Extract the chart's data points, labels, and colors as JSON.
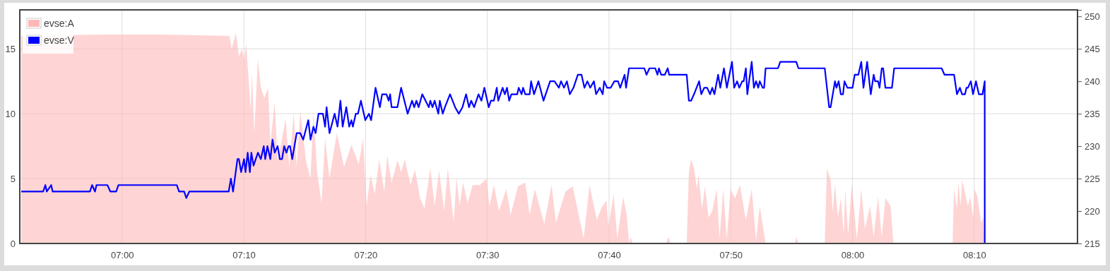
{
  "chart_data": {
    "type": "line",
    "xlim": [
      6.86,
      8.308
    ],
    "xticks": [
      {
        "value": 7,
        "label": "07:00"
      },
      {
        "value": 7.1666667,
        "label": "07:10"
      },
      {
        "value": 7.3333333,
        "label": "07:20"
      },
      {
        "value": 7.5,
        "label": "07:30"
      },
      {
        "value": 7.6666667,
        "label": "07:40"
      },
      {
        "value": 7.8333333,
        "label": "07:50"
      },
      {
        "value": 8,
        "label": "08:00"
      },
      {
        "value": 8.1666667,
        "label": "08:10"
      }
    ],
    "ylim": [
      0,
      18
    ],
    "yticks": [
      0,
      5,
      10,
      15
    ],
    "y2lim": [
      215,
      251
    ],
    "y2ticks": [
      215,
      220,
      225,
      230,
      235,
      240,
      245,
      250
    ],
    "grid": true,
    "legend": "top left",
    "series": [
      {
        "name": "evse:A",
        "type": "area",
        "color": "#ffb8b8",
        "x": [
          6.862,
          6.974,
          7.052,
          7.141,
          7.147,
          7.15,
          7.156,
          7.16,
          7.164,
          7.167,
          7.17,
          7.176,
          7.178,
          7.181,
          7.186,
          7.19,
          7.195,
          7.2,
          7.203,
          7.209,
          7.213,
          7.219,
          7.224,
          7.229,
          7.235,
          7.239,
          7.244,
          7.252,
          7.258,
          7.262,
          7.267,
          7.273,
          7.278,
          7.284,
          7.294,
          7.304,
          7.314,
          7.324,
          7.33,
          7.335,
          7.34,
          7.346,
          7.352,
          7.359,
          7.363,
          7.369,
          7.377,
          7.382,
          7.387,
          7.395,
          7.401,
          7.408,
          7.414,
          7.422,
          7.428,
          7.434,
          7.441,
          7.446,
          7.454,
          7.458,
          7.462,
          7.467,
          7.473,
          7.48,
          7.49,
          7.499,
          7.503,
          7.509,
          7.516,
          7.526,
          7.532,
          7.542,
          7.552,
          7.558,
          7.565,
          7.578,
          7.588,
          7.594,
          7.607,
          7.617,
          7.624,
          7.632,
          7.64,
          7.65,
          7.656,
          7.663,
          7.666,
          7.673,
          7.678,
          7.686,
          7.691,
          7.694,
          7.696,
          7.699,
          7.745,
          7.748,
          7.751,
          7.773,
          7.776,
          7.779,
          7.783,
          7.787,
          7.789,
          7.794,
          7.798,
          7.803,
          7.808,
          7.814,
          7.818,
          7.823,
          7.828,
          7.833,
          7.839,
          7.846,
          7.854,
          7.862,
          7.868,
          7.873,
          7.881,
          7.921,
          7.923,
          7.926,
          7.962,
          7.965,
          7.97,
          7.973,
          7.976,
          7.98,
          7.984,
          7.988,
          7.99,
          7.994,
          7.999,
          8.006,
          8.012,
          8.017,
          8.024,
          8.029,
          8.035,
          8.04,
          8.045,
          8.052,
          8.056,
          8.137,
          8.139,
          8.143,
          8.145,
          8.148,
          8.15,
          8.158,
          8.161,
          8.165,
          8.167,
          8.171,
          8.176,
          8.179,
          8.181
        ],
        "values": [
          16.0,
          16.1,
          16.1,
          16.0,
          16.0,
          15.0,
          16.2,
          14.4,
          15.0,
          14.2,
          15.4,
          10.3,
          13.1,
          8.5,
          14.2,
          12.0,
          11.2,
          12.0,
          7.7,
          10.9,
          6.3,
          8.1,
          9.6,
          5.9,
          10.1,
          5.9,
          10.2,
          6.3,
          5.0,
          10.1,
          5.5,
          3.1,
          8.1,
          5.0,
          8.5,
          5.9,
          7.6,
          6.1,
          8.1,
          2.9,
          5.3,
          3.8,
          6.5,
          4.0,
          6.8,
          4.7,
          6.4,
          5.5,
          6.5,
          4.5,
          5.7,
          3.5,
          2.7,
          5.8,
          2.9,
          5.6,
          2.5,
          5.8,
          1.6,
          5.1,
          2.9,
          4.7,
          3.1,
          4.5,
          4.5,
          5.0,
          2.9,
          4.5,
          2.5,
          4.2,
          2.2,
          4.4,
          4.7,
          2.2,
          4.2,
          1.5,
          4.5,
          1.6,
          4.0,
          4.4,
          2.5,
          0.4,
          4.5,
          1.8,
          2.7,
          3.3,
          1.3,
          3.8,
          0.4,
          3.6,
          2.2,
          0,
          0.5,
          0,
          0,
          0.5,
          0,
          0,
          5.5,
          6.5,
          5.8,
          4.2,
          5.3,
          2.7,
          4.4,
          2.0,
          2.5,
          4.2,
          0.4,
          4.2,
          0.4,
          4.2,
          3.5,
          4.5,
          1.8,
          4.2,
          0.3,
          2.9,
          0,
          0,
          0.5,
          0,
          0,
          5.8,
          4.9,
          2.4,
          4.6,
          2.0,
          3.5,
          0.7,
          4.2,
          0.7,
          4.6,
          0.3,
          4.2,
          1.1,
          2.9,
          0.5,
          3.6,
          0.5,
          3.5,
          2.9,
          0,
          0,
          4.2,
          2.7,
          4.7,
          2.9,
          4.9,
          2.9,
          3.6,
          2.0,
          4.2,
          3.6,
          1.6,
          2.0,
          0
        ]
      },
      {
        "name": "evse:V",
        "type": "line",
        "axis": "y2",
        "color": "#0000ff",
        "x": [
          6.862,
          6.892,
          6.895,
          6.897,
          6.903,
          6.905,
          6.956,
          6.959,
          6.963,
          6.965,
          6.98,
          6.984,
          6.992,
          6.995,
          7.075,
          7.078,
          7.085,
          7.088,
          7.092,
          7.146,
          7.149,
          7.152,
          7.158,
          7.16,
          7.163,
          7.167,
          7.169,
          7.172,
          7.175,
          7.177,
          7.18,
          7.186,
          7.19,
          7.194,
          7.196,
          7.199,
          7.203,
          7.206,
          7.209,
          7.213,
          7.216,
          7.219,
          7.222,
          7.225,
          7.228,
          7.23,
          7.233,
          7.239,
          7.244,
          7.248,
          7.255,
          7.258,
          7.262,
          7.265,
          7.269,
          7.275,
          7.278,
          7.28,
          7.284,
          7.291,
          7.295,
          7.299,
          7.302,
          7.307,
          7.311,
          7.314,
          7.316,
          7.32,
          7.323,
          7.327,
          7.333,
          7.338,
          7.341,
          7.347,
          7.353,
          7.356,
          7.362,
          7.365,
          7.367,
          7.369,
          7.377,
          7.382,
          7.391,
          7.397,
          7.4,
          7.403,
          7.406,
          7.411,
          7.42,
          7.422,
          7.425,
          7.428,
          7.433,
          7.435,
          7.439,
          7.442,
          7.449,
          7.456,
          7.461,
          7.466,
          7.471,
          7.475,
          7.478,
          7.482,
          7.488,
          7.492,
          7.496,
          7.502,
          7.505,
          7.509,
          7.513,
          7.515,
          7.521,
          7.524,
          7.527,
          7.53,
          7.533,
          7.541,
          7.543,
          7.547,
          7.549,
          7.552,
          7.558,
          7.56,
          7.564,
          7.57,
          7.577,
          7.586,
          7.592,
          7.598,
          7.601,
          7.605,
          7.609,
          7.613,
          7.618,
          7.624,
          7.629,
          7.633,
          7.637,
          7.641,
          7.646,
          7.649,
          7.654,
          7.658,
          7.66,
          7.664,
          7.669,
          7.674,
          7.679,
          7.682,
          7.688,
          7.69,
          7.694,
          7.715,
          7.718,
          7.722,
          7.73,
          7.733,
          7.735,
          7.738,
          7.743,
          7.747,
          7.749,
          7.773,
          7.776,
          7.779,
          7.783,
          7.79,
          7.793,
          7.797,
          7.801,
          7.805,
          7.808,
          7.811,
          7.816,
          7.819,
          7.824,
          7.828,
          7.835,
          7.838,
          7.842,
          7.845,
          7.849,
          7.851,
          7.854,
          7.856,
          7.862,
          7.865,
          7.868,
          7.871,
          7.873,
          7.877,
          7.879,
          7.881,
          7.898,
          7.901,
          7.923,
          7.926,
          7.962,
          7.968,
          7.97,
          7.976,
          7.978,
          7.981,
          7.984,
          7.987,
          7.989,
          7.993,
          8.0,
          8.003,
          8.008,
          8.012,
          8.015,
          8.02,
          8.025,
          8.029,
          8.031,
          8.035,
          8.037,
          8.04,
          8.042,
          8.045,
          8.054,
          8.057,
          8.122,
          8.126,
          8.139,
          8.143,
          8.147,
          8.15,
          8.154,
          8.156,
          8.158,
          8.162,
          8.165,
          8.169,
          8.173,
          8.178,
          8.181,
          8.181
        ],
        "values": [
          223,
          223,
          224,
          223,
          224,
          223,
          223,
          224,
          223,
          224,
          224,
          223,
          223,
          224,
          224,
          223,
          223,
          222,
          223,
          223,
          225,
          223,
          228,
          228,
          226,
          228,
          226,
          229,
          226,
          229,
          227,
          229,
          228,
          230,
          228,
          230,
          228,
          231,
          229,
          230,
          228,
          228,
          230,
          229,
          230,
          230,
          228,
          232,
          232,
          231,
          234,
          231,
          233,
          232,
          235,
          235,
          233,
          236,
          232,
          235,
          233,
          237,
          233,
          236,
          233,
          234,
          233,
          235,
          235,
          237,
          234,
          235,
          234,
          239,
          236,
          238,
          238,
          237,
          238,
          236,
          236,
          239,
          235,
          237,
          236,
          237,
          236,
          238,
          236,
          237,
          236,
          237,
          235,
          237,
          235,
          236,
          238,
          236,
          235,
          236,
          238,
          236,
          237,
          236,
          238,
          237,
          239,
          236,
          237,
          237,
          239,
          237,
          239,
          238,
          239,
          237,
          238,
          238,
          239,
          238,
          239,
          238,
          238,
          240,
          238,
          240,
          237,
          240,
          240,
          239,
          240,
          239,
          240,
          238,
          239,
          241,
          241,
          239,
          240,
          239,
          240,
          238,
          239,
          238,
          240,
          239,
          239,
          240,
          240,
          239,
          241,
          239,
          242,
          242,
          241,
          242,
          242,
          241,
          242,
          241,
          241,
          242,
          241,
          241,
          237,
          237,
          238,
          240,
          238,
          239,
          239,
          238,
          239,
          238,
          241,
          239,
          242,
          239,
          243,
          239,
          240,
          239,
          240,
          240,
          242,
          238,
          243,
          239,
          240,
          239,
          240,
          239,
          239,
          242,
          242,
          243,
          243,
          242,
          242,
          236,
          236,
          240,
          239,
          240,
          238,
          238,
          240,
          239,
          239,
          241,
          241,
          243,
          239,
          243,
          238,
          241,
          240,
          240,
          239,
          242,
          242,
          239,
          239,
          242,
          242,
          241,
          241,
          238,
          239,
          238,
          238,
          239,
          239,
          240,
          238,
          240,
          238,
          238,
          240,
          215
        ]
      }
    ]
  }
}
